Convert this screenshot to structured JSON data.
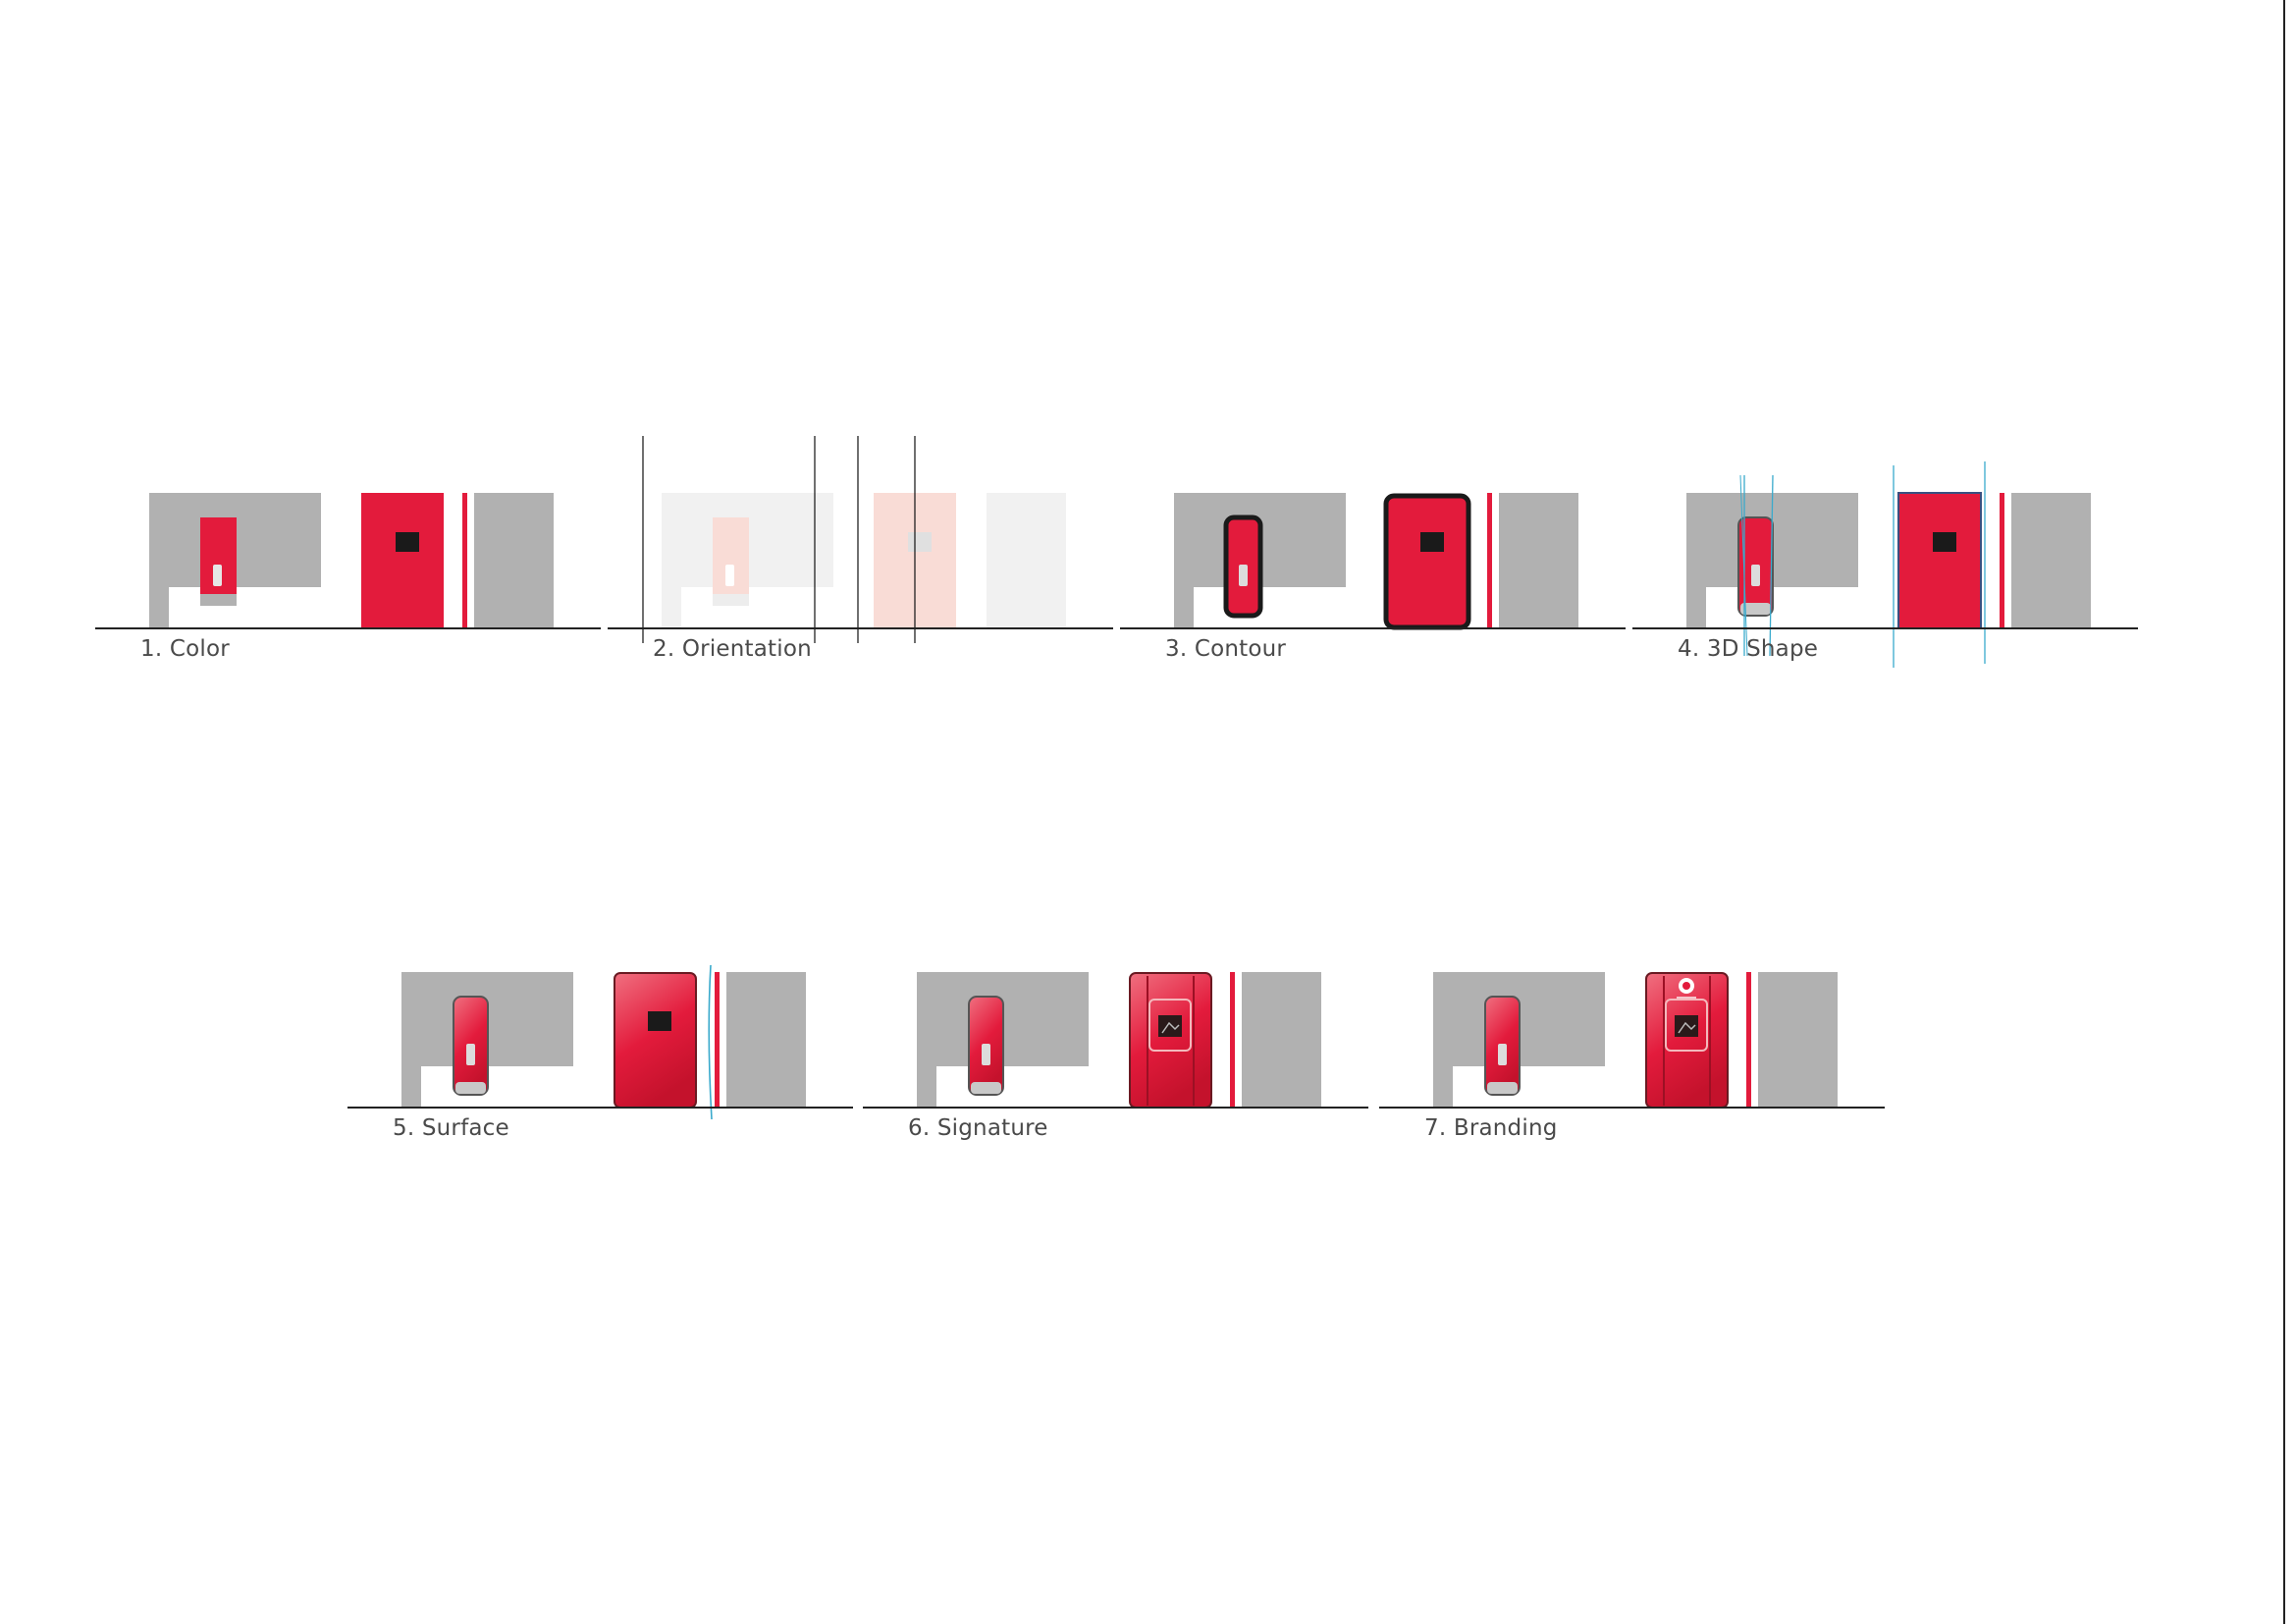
{
  "colors": {
    "red": "#e31b3c",
    "red_light": "#f07080",
    "red_dark": "#c4122c",
    "gray": "#b1b1b1",
    "gray_light": "#f1f1f1",
    "peach": "#f9dcd6",
    "peach_dark": "#f4bcb4",
    "black": "#1a1a1a",
    "cyan": "#3aaacc",
    "caption": "#4a4a4a",
    "page_edge": "#222222"
  },
  "panels": [
    {
      "id": "1",
      "caption": "1. Color",
      "variant": "color"
    },
    {
      "id": "2",
      "caption": "2. Orientation",
      "variant": "orientation"
    },
    {
      "id": "3",
      "caption": "3. Contour",
      "variant": "contour"
    },
    {
      "id": "4",
      "caption": "4. 3D Shape",
      "variant": "shape3d"
    },
    {
      "id": "5",
      "caption": "5. Surface",
      "variant": "surface"
    },
    {
      "id": "6",
      "caption": "6. Signature",
      "variant": "signature"
    },
    {
      "id": "7",
      "caption": "7. Branding",
      "variant": "branding"
    }
  ]
}
